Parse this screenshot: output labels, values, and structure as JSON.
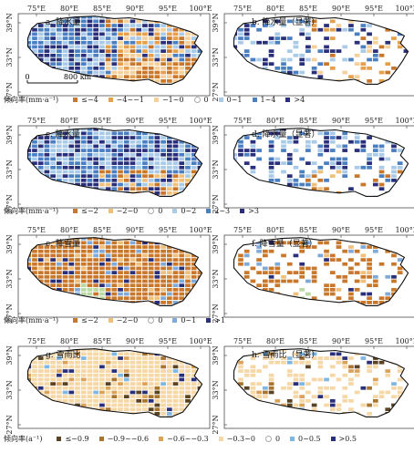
{
  "panels": [
    {
      "title": "a. 降水量",
      "row": 0,
      "col": 0,
      "sig": false,
      "scheme": "p1"
    },
    {
      "title": "b. 降水量（显著）",
      "row": 0,
      "col": 1,
      "sig": true,
      "scheme": "p1"
    },
    {
      "title": "c. 降水量",
      "row": 1,
      "col": 0,
      "sig": false,
      "scheme": "p2"
    },
    {
      "title": "d. 降水量（显著）",
      "row": 1,
      "col": 1,
      "sig": true,
      "scheme": "p2"
    },
    {
      "title": "e. 降雪量",
      "row": 2,
      "col": 0,
      "sig": false,
      "scheme": "snow"
    },
    {
      "title": "f. 降雪量（显著）",
      "row": 2,
      "col": 1,
      "sig": true,
      "scheme": "snow"
    },
    {
      "title": "g. 雪雨比",
      "row": 3,
      "col": 0,
      "sig": false,
      "scheme": "ratio"
    },
    {
      "title": "h. 雪雨比（显著）",
      "row": 3,
      "col": 1,
      "sig": true,
      "scheme": "ratio"
    }
  ],
  "lon_ticks": [
    "75°E",
    "80°E",
    "85°E",
    "90°E",
    "95°E",
    "100°E"
  ],
  "lat_ticks": [
    "39°N",
    "33°N",
    "27°N"
  ],
  "scale": {
    "zero": "0",
    "label": "800 km"
  },
  "legends": [
    {
      "title": "倾向率(mm·a⁻¹)",
      "items": [
        {
          "label": "≤−4",
          "color": "#c9782b"
        },
        {
          "label": "−4~−1",
          "color": "#e6a04c"
        },
        {
          "label": "−1~0",
          "color": "#f5d09a"
        },
        {
          "label": "0",
          "color": "ring"
        },
        {
          "label": "0~1",
          "color": "#a9cbe8"
        },
        {
          "label": "1~4",
          "color": "#4a7fc1"
        },
        {
          "label": ">4",
          "color": "#2a2f7a"
        }
      ]
    },
    {
      "title": "倾向率(mm·a⁻¹)",
      "items": [
        {
          "label": "≤−2",
          "color": "#c9782b"
        },
        {
          "label": "−2~0",
          "color": "#f0bf7a"
        },
        {
          "label": "0",
          "color": "ring"
        },
        {
          "label": "0~2",
          "color": "#a9cbe8"
        },
        {
          "label": "2~3",
          "color": "#4a7fc1"
        },
        {
          "label": ">3",
          "color": "#2a2f7a"
        }
      ]
    },
    {
      "title": "倾向率(mm·a⁻¹)",
      "items": [
        {
          "label": "≤−2",
          "color": "#c9782b"
        },
        {
          "label": "−2~0",
          "color": "#f0bf7a"
        },
        {
          "label": "0",
          "color": "ring"
        },
        {
          "label": "0~1",
          "color": "#7fa9d8"
        },
        {
          "label": ">1",
          "color": "#2a2f7a"
        }
      ]
    },
    {
      "title": "倾向率(a⁻¹)",
      "items": [
        {
          "label": "≤−0.9",
          "color": "#5a4322"
        },
        {
          "label": "−0.9~−0.6",
          "color": "#a8742e"
        },
        {
          "label": "−0.6~−0.3",
          "color": "#dba35a"
        },
        {
          "label": "−0.3~0",
          "color": "#f6d7a6"
        },
        {
          "label": "0",
          "color": "ring"
        },
        {
          "label": "0~0.5",
          "color": "#7fb7e3"
        },
        {
          "label": ">0.5",
          "color": "#2a2f7a"
        }
      ]
    }
  ],
  "colors": {
    "p1": [
      "#c9782b",
      "#e6a04c",
      "#f5d09a",
      "#a9cbe8",
      "#4a7fc1",
      "#2a2f7a"
    ],
    "p2": [
      "#c9782b",
      "#f0bf7a",
      "#a9cbe8",
      "#4a7fc1",
      "#2a2f7a"
    ],
    "snow": [
      "#c9782b",
      "#f0bf7a",
      "#7fa9d8",
      "#2a2f7a",
      "#b9d9a3"
    ],
    "ratio": [
      "#5a4322",
      "#a8742e",
      "#dba35a",
      "#f6d7a6",
      "#7fb7e3",
      "#2a2f7a"
    ]
  }
}
